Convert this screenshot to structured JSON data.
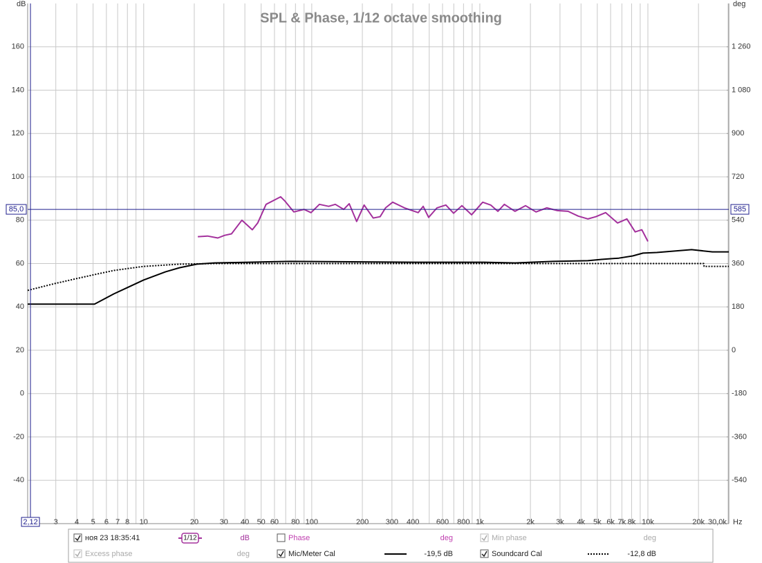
{
  "chart_data": {
    "type": "line",
    "title": "SPL & Phase, 1/12 octave smoothing",
    "y_label": "dB",
    "y2_label": "deg",
    "x_label": "Hz",
    "log_x": true,
    "grid": true,
    "xlim": [
      2.04,
      30300
    ],
    "ylim": [
      -60,
      180
    ],
    "y2lim": [
      -720,
      1440
    ],
    "xticks": [
      3,
      4,
      5,
      6,
      7,
      8,
      {
        "value": 9,
        "label": null
      },
      10,
      20,
      30,
      40,
      50,
      60,
      {
        "value": 70,
        "label": null
      },
      80,
      {
        "value": 90,
        "label": null
      },
      100,
      200,
      300,
      400,
      {
        "value": 500,
        "label": null
      },
      600,
      {
        "value": 700,
        "label": null
      },
      800,
      {
        "value": 900,
        "label": null
      },
      {
        "value": 1000,
        "label": "1k"
      },
      {
        "value": 2000,
        "label": "2k"
      },
      {
        "value": 3000,
        "label": "3k"
      },
      {
        "value": 4000,
        "label": "4k"
      },
      {
        "value": 5000,
        "label": "5k"
      },
      {
        "value": 6000,
        "label": "6k"
      },
      {
        "value": 7000,
        "label": "7k"
      },
      {
        "value": 8000,
        "label": "8k"
      },
      {
        "value": 9000,
        "label": null
      },
      {
        "value": 10000,
        "label": "10k"
      },
      {
        "value": 20000,
        "label": "20k"
      },
      {
        "value": 30000,
        "label": "30,0k"
      }
    ],
    "yticks": [
      -40,
      -20,
      0,
      20,
      40,
      60,
      80,
      100,
      120,
      140,
      160
    ],
    "y2ticks": [
      -540,
      -360,
      -180,
      0,
      180,
      360,
      540,
      720,
      900,
      {
        "value": 1080,
        "label": "1 080"
      },
      {
        "value": 1260,
        "label": "1 260"
      }
    ],
    "cursor": {
      "x": {
        "value": 2.12,
        "label": "2,12"
      },
      "y": {
        "value": 85,
        "label": "85,0"
      },
      "y2": 585,
      "color": "#1c1c8c"
    },
    "series": [
      {
        "name": "ноя 23 18:35:41",
        "color": "#a3309c",
        "checked": true,
        "smoothing": "1/12",
        "unit": "dB",
        "x": [
          21,
          24,
          27.6,
          30.3,
          33.3,
          38.4,
          44.3,
          47.7,
          53.5,
          61.7,
          65.3,
          69.1,
          78.2,
          90,
          99,
          111,
          126,
          138,
          155,
          167,
          185,
          205,
          232,
          255,
          275,
          303,
          356,
          430,
          460,
          496,
          556,
          628,
          698,
          782,
          893,
          1040,
          1160,
          1280,
          1400,
          1620,
          1870,
          2160,
          2500,
          2900,
          3350,
          3850,
          4400,
          4900,
          5600,
          6600,
          7500,
          8400,
          9200,
          10000
        ],
        "values": [
          72.4,
          72.7,
          71.8,
          73,
          73.7,
          80,
          75.6,
          78.7,
          87.3,
          89.8,
          90.8,
          88.9,
          83.8,
          85,
          83.5,
          87.3,
          86.4,
          87.3,
          85,
          87.6,
          79.4,
          87,
          81,
          81.6,
          85.7,
          88.3,
          85.7,
          83.5,
          86.4,
          81.3,
          85.7,
          87,
          83.2,
          86.7,
          82.5,
          88.3,
          87,
          84.1,
          87.3,
          84.1,
          86.7,
          83.8,
          85.7,
          84.4,
          84.1,
          81.9,
          80.6,
          81.6,
          83.5,
          78.7,
          80.6,
          74.6,
          75.6,
          70.2
        ]
      },
      {
        "name": "Mic/Meter Cal",
        "color": "#000000",
        "checked": true,
        "offset": "-19,5 dB",
        "x": [
          2.04,
          5.1,
          6.65,
          8,
          10,
          13.5,
          16.4,
          20.7,
          26.3,
          42.2,
          74.5,
          410,
          1060,
          1620,
          2730,
          4390,
          5300,
          6710,
          8110,
          9350,
          11300,
          18200,
          24200,
          30300
        ],
        "values": [
          41.3,
          41.3,
          46,
          48.9,
          52.4,
          56.2,
          58.1,
          59.7,
          60.3,
          60.6,
          61,
          60.6,
          60.6,
          60.3,
          61,
          61.3,
          61.9,
          62.5,
          63.5,
          64.8,
          65.1,
          66.4,
          65.4,
          65.4
        ]
      },
      {
        "name": "Soundcard Cal",
        "color": "#000000",
        "checked": true,
        "dash": "dotted",
        "offset": "-12,8 dB",
        "x": [
          2.04,
          2.97,
          3.95,
          5.1,
          6.65,
          10,
          16.4,
          26.3,
          21500,
          21600,
          30300
        ],
        "values": [
          47.6,
          50.8,
          53,
          54.9,
          56.8,
          58.7,
          59.7,
          60,
          60,
          58.7,
          58.7
        ]
      }
    ],
    "traces": [
      {
        "name": "Phase",
        "unit": "deg",
        "checked": false,
        "enabled": true,
        "color": "#c040b0"
      },
      {
        "name": "Min phase",
        "unit": "deg",
        "checked": true,
        "enabled": false
      },
      {
        "name": "Excess phase",
        "unit": "deg",
        "checked": true,
        "enabled": false
      }
    ]
  }
}
